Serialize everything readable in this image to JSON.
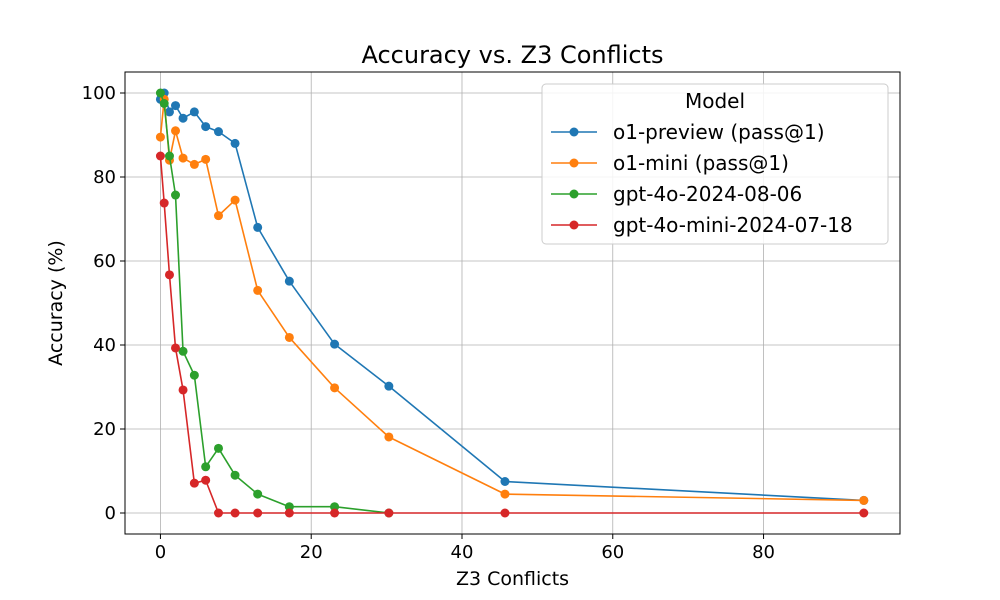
{
  "chart_data": {
    "type": "line",
    "title": "Accuracy vs. Z3 Conflicts",
    "xlabel": "Z3 Conflicts",
    "ylabel": "Accuracy (%)",
    "xlim": [
      -4.7,
      98.1
    ],
    "ylim": [
      -5,
      105
    ],
    "xticks": [
      0,
      20,
      40,
      60,
      80
    ],
    "yticks": [
      0,
      20,
      40,
      60,
      80,
      100
    ],
    "grid": true,
    "legend": {
      "title": "Model",
      "placement": "top-right"
    },
    "series": [
      {
        "name": "o1-preview (pass@1)",
        "color": "#1f77b4",
        "x": [
          0,
          0.5,
          1.2,
          2,
          3,
          4.5,
          6,
          7.7,
          9.9,
          12.9,
          17.1,
          23.1,
          30.3,
          45.7,
          93.3
        ],
        "y": [
          98.5,
          100,
          95.5,
          97,
          94,
          95.5,
          92,
          90.8,
          88,
          68,
          55.2,
          40.2,
          30.2,
          7.5,
          3
        ]
      },
      {
        "name": "o1-mini (pass@1)",
        "color": "#ff7f0e",
        "x": [
          0,
          0.5,
          1.2,
          2,
          3,
          4.5,
          6,
          7.7,
          9.9,
          12.9,
          17.1,
          23.1,
          30.3,
          45.7,
          93.3
        ],
        "y": [
          89.5,
          98.5,
          84,
          91,
          84.5,
          83,
          84.2,
          70.8,
          74.5,
          53,
          41.8,
          29.8,
          18.1,
          4.5,
          3
        ]
      },
      {
        "name": "gpt-4o-2024-08-06",
        "color": "#2ca02c",
        "x": [
          0,
          0.5,
          1.2,
          2,
          3,
          4.5,
          6,
          7.7,
          9.9,
          12.9,
          17.1,
          23.1,
          30.3
        ],
        "y": [
          100,
          97.5,
          85,
          75.7,
          38.5,
          32.8,
          11,
          15.4,
          9,
          4.5,
          1.5,
          1.5,
          0
        ]
      },
      {
        "name": "gpt-4o-mini-2024-07-18",
        "color": "#d62728",
        "x": [
          0,
          0.5,
          1.2,
          2,
          3,
          4.5,
          6,
          7.7,
          9.9,
          12.9,
          17.1,
          23.1,
          30.3,
          45.7,
          93.3
        ],
        "y": [
          85,
          73.8,
          56.7,
          39.3,
          29.3,
          7.1,
          7.8,
          0,
          0,
          0,
          0,
          0,
          0,
          0,
          0
        ]
      }
    ]
  }
}
